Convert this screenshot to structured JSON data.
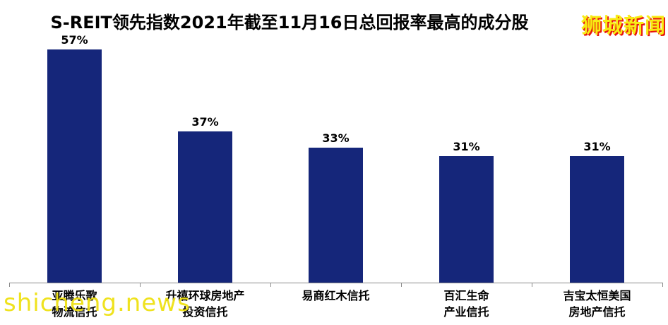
{
  "header": {
    "title": "S-REIT领先指数2021年截至11月16日总回报率最高的成分股",
    "logo_text": "狮城新闻",
    "logo_color": "#F7EC13",
    "logo_shadow_color": "#E8150C"
  },
  "watermark": {
    "text": "shicheng.news",
    "color": "#EFE112"
  },
  "chart_data": {
    "type": "bar",
    "title": "S-REIT领先指数2021年截至11月16日总回报率最高的成分股",
    "categories": [
      "亚腾乐歌\n物流信托",
      "升禧环球房地产\n投资信托",
      "易商红木信托",
      "百汇生命\n产业信托",
      "吉宝太恒美国\n房地产信托"
    ],
    "values": [
      57,
      37,
      33,
      31,
      31
    ],
    "data_labels": [
      "57%",
      "37%",
      "33%",
      "31%",
      "31%"
    ],
    "xlabel": "",
    "ylabel": "",
    "ylim": [
      0,
      60
    ],
    "unit": "%",
    "grid": false,
    "legend": false,
    "bar_color": "#15267A",
    "axis_color": "#8A8A8A",
    "label_color": "#000000"
  }
}
